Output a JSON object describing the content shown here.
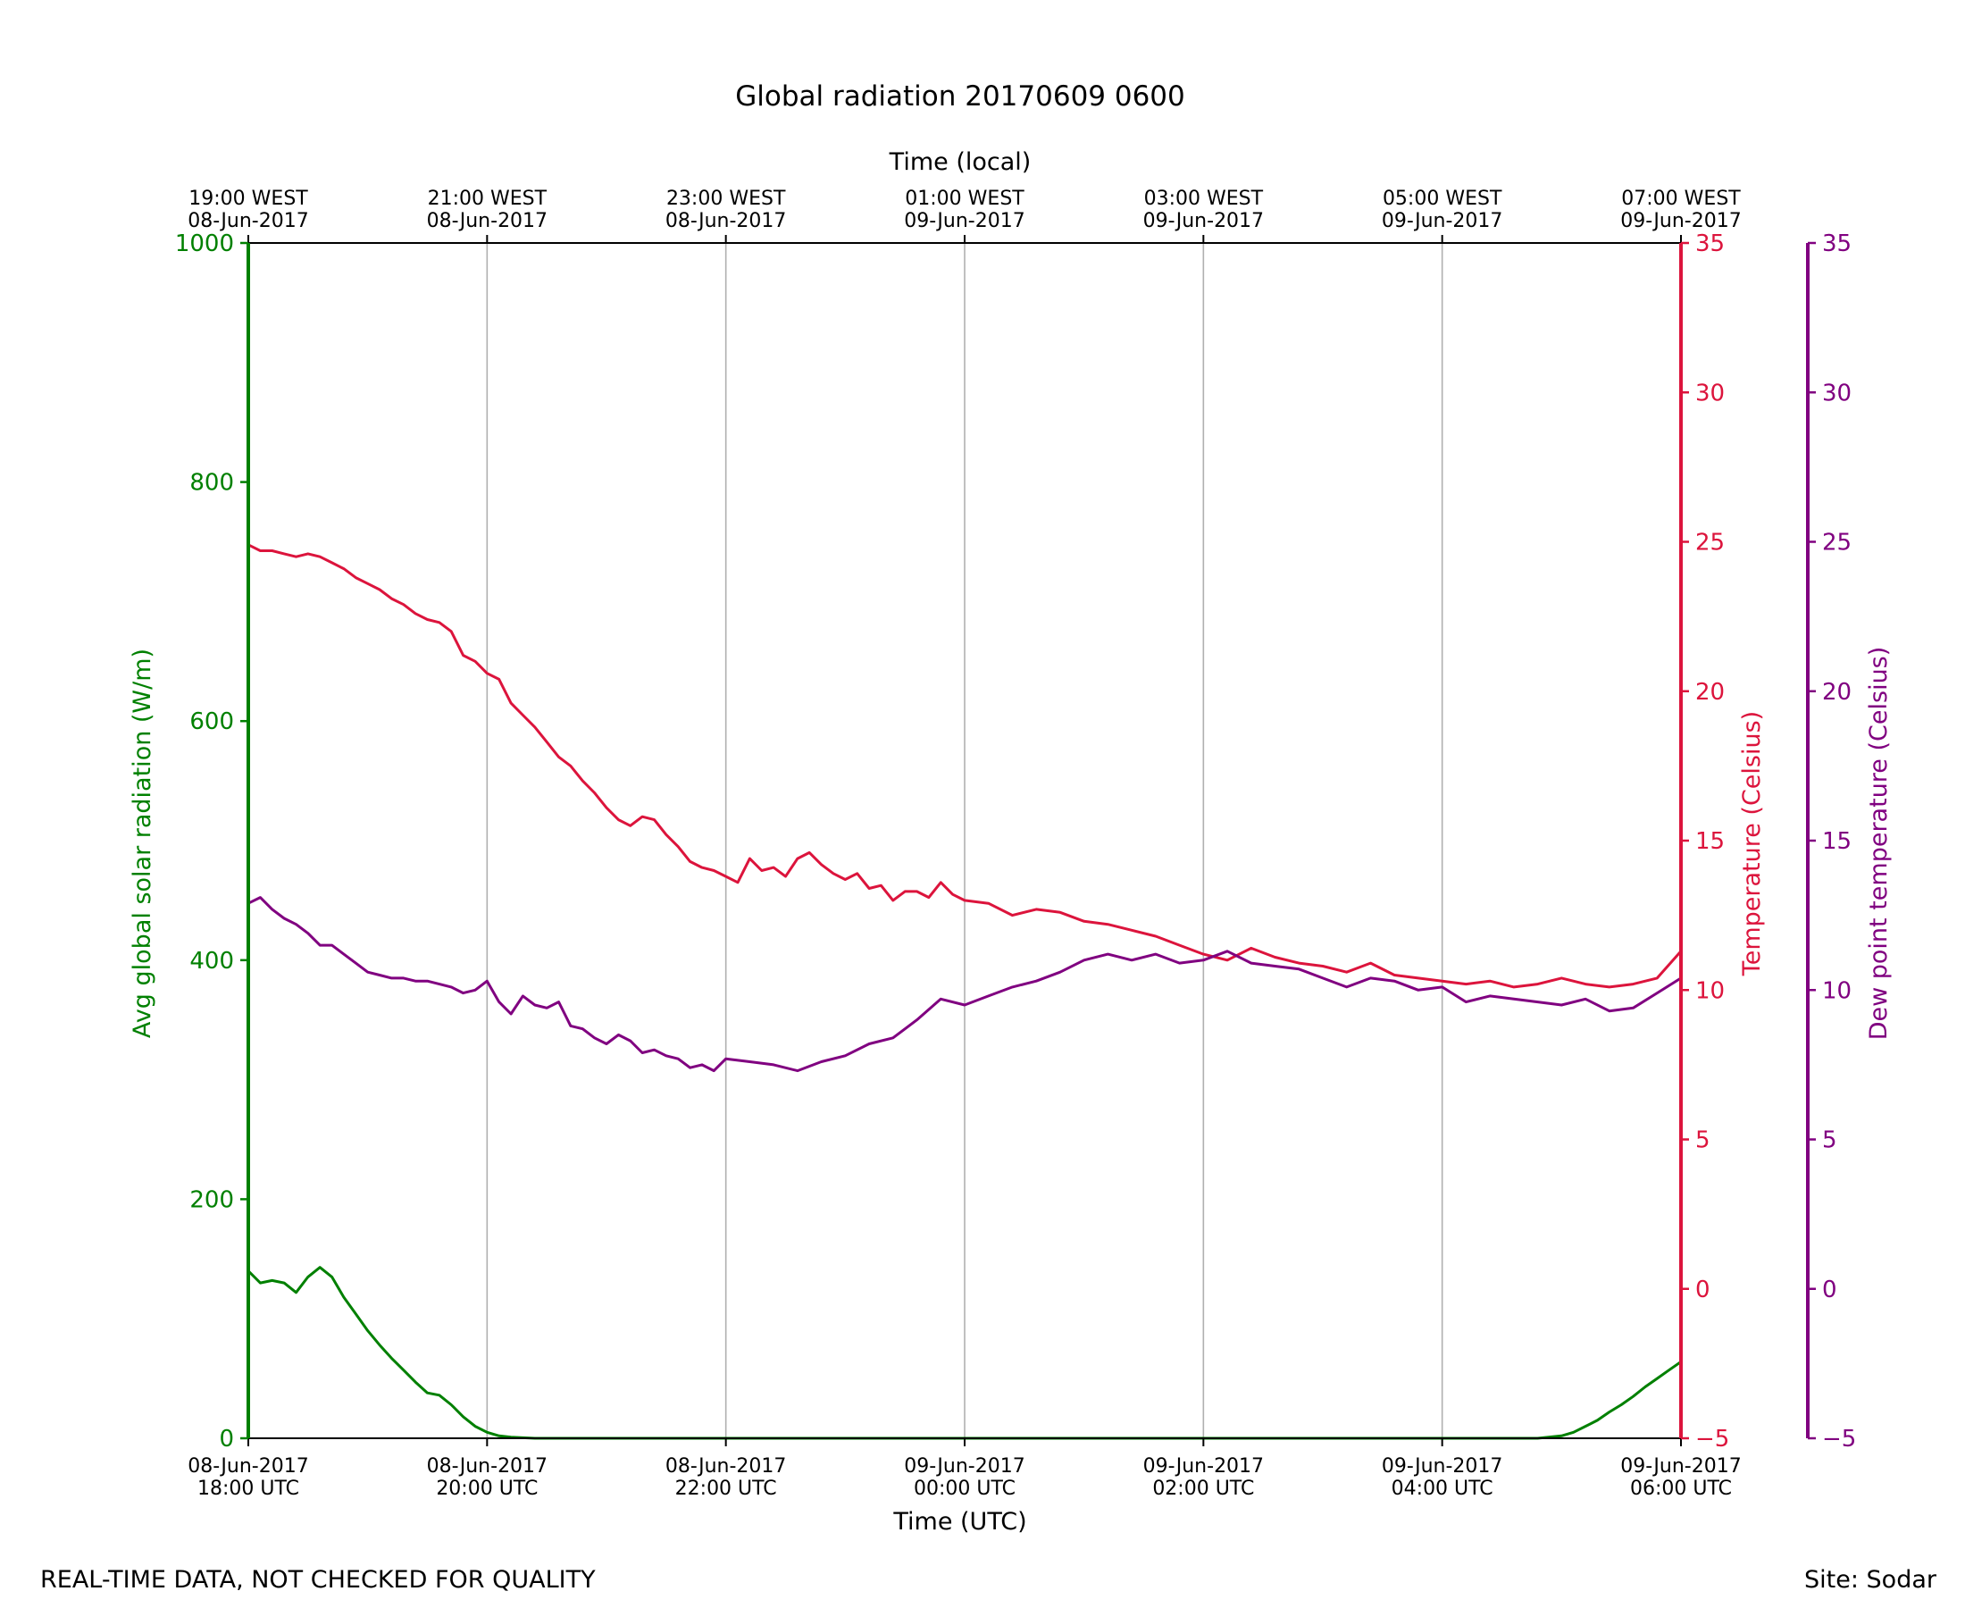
{
  "footer": {
    "left_note": "REAL-TIME DATA, NOT CHECKED FOR QUALITY",
    "site": "Site: Sodar"
  },
  "colors": {
    "radiation": "#008000",
    "temperature": "#dc143c",
    "dewpoint": "#800080",
    "grid": "#b0b0b0",
    "axis": "#000000"
  },
  "chart_data": {
    "type": "line",
    "title": "Global radiation 20170609 0600",
    "top_xlabel": "Time (local)",
    "xlabel": "Time (UTC)",
    "xlim_hours": [
      0,
      12
    ],
    "x_unit": "hours since 08-Jun-2017 18:00 UTC",
    "x_ticks": [
      {
        "hour": 0,
        "utc_date": "08-Jun-2017",
        "utc_time": "18:00 UTC",
        "local_time": "19:00 WEST",
        "local_date": "08-Jun-2017"
      },
      {
        "hour": 2,
        "utc_date": "08-Jun-2017",
        "utc_time": "20:00 UTC",
        "local_time": "21:00 WEST",
        "local_date": "08-Jun-2017"
      },
      {
        "hour": 4,
        "utc_date": "08-Jun-2017",
        "utc_time": "22:00 UTC",
        "local_time": "23:00 WEST",
        "local_date": "08-Jun-2017"
      },
      {
        "hour": 6,
        "utc_date": "09-Jun-2017",
        "utc_time": "00:00 UTC",
        "local_time": "01:00 WEST",
        "local_date": "09-Jun-2017"
      },
      {
        "hour": 8,
        "utc_date": "09-Jun-2017",
        "utc_time": "02:00 UTC",
        "local_time": "03:00 WEST",
        "local_date": "09-Jun-2017"
      },
      {
        "hour": 10,
        "utc_date": "09-Jun-2017",
        "utc_time": "04:00 UTC",
        "local_time": "05:00 WEST",
        "local_date": "09-Jun-2017"
      },
      {
        "hour": 12,
        "utc_date": "09-Jun-2017",
        "utc_time": "06:00 UTC",
        "local_time": "07:00 WEST",
        "local_date": "09-Jun-2017"
      }
    ],
    "y_axes": [
      {
        "key": "radiation",
        "label": "Avg global solar radiation (W/m)",
        "ylim": [
          0,
          1000
        ],
        "ticks": [
          0,
          200,
          400,
          600,
          800,
          1000
        ],
        "tick_labels": [
          "0",
          "200",
          "400",
          "600",
          "800",
          "1000"
        ],
        "side": "left"
      },
      {
        "key": "temperature",
        "label": "Temperature (Celsius)",
        "ylim": [
          -5,
          35
        ],
        "ticks": [
          -5,
          0,
          5,
          10,
          15,
          20,
          25,
          30,
          35
        ],
        "tick_labels": [
          "−5",
          "0",
          "5",
          "10",
          "15",
          "20",
          "25",
          "30",
          "35"
        ],
        "side": "right"
      },
      {
        "key": "dewpoint",
        "label": "Dew point temperature (Celsius)",
        "ylim": [
          -5,
          35
        ],
        "ticks": [
          -5,
          0,
          5,
          10,
          15,
          20,
          25,
          30,
          35
        ],
        "tick_labels": [
          "−5",
          "0",
          "5",
          "10",
          "15",
          "20",
          "25",
          "30",
          "35"
        ],
        "side": "right-outer"
      }
    ],
    "series": [
      {
        "name": "Avg global solar radiation",
        "axis": "radiation",
        "x": [
          0,
          0.1,
          0.2,
          0.3,
          0.4,
          0.5,
          0.6,
          0.7,
          0.8,
          0.9,
          1.0,
          1.1,
          1.2,
          1.3,
          1.4,
          1.5,
          1.6,
          1.7,
          1.8,
          1.9,
          2.0,
          2.1,
          2.2,
          2.4,
          2.6,
          3.0,
          4.0,
          6.0,
          8.0,
          10.0,
          10.6,
          10.8,
          11.0,
          11.1,
          11.2,
          11.3,
          11.4,
          11.5,
          11.6,
          11.7,
          11.8,
          11.9,
          12.0
        ],
        "y": [
          140,
          130,
          132,
          130,
          122,
          135,
          143,
          135,
          118,
          104,
          90,
          78,
          67,
          57,
          47,
          38,
          36,
          28,
          18,
          10,
          5,
          2,
          1,
          0,
          0,
          0,
          0,
          0,
          0,
          0,
          0,
          0,
          2,
          5,
          10,
          15,
          22,
          28,
          35,
          43,
          50,
          57,
          64
        ]
      },
      {
        "name": "Temperature",
        "axis": "temperature",
        "x": [
          0,
          0.1,
          0.2,
          0.3,
          0.4,
          0.5,
          0.6,
          0.7,
          0.8,
          0.9,
          1.0,
          1.1,
          1.2,
          1.3,
          1.4,
          1.5,
          1.6,
          1.7,
          1.8,
          1.9,
          2.0,
          2.1,
          2.2,
          2.3,
          2.4,
          2.5,
          2.6,
          2.7,
          2.8,
          2.9,
          3.0,
          3.1,
          3.2,
          3.3,
          3.4,
          3.5,
          3.6,
          3.7,
          3.8,
          3.9,
          4.0,
          4.1,
          4.2,
          4.3,
          4.4,
          4.5,
          4.6,
          4.7,
          4.8,
          4.9,
          5.0,
          5.1,
          5.2,
          5.3,
          5.4,
          5.5,
          5.6,
          5.7,
          5.8,
          5.9,
          6.0,
          6.2,
          6.4,
          6.6,
          6.8,
          7.0,
          7.2,
          7.4,
          7.6,
          7.8,
          8.0,
          8.2,
          8.4,
          8.6,
          8.8,
          9.0,
          9.2,
          9.4,
          9.6,
          9.8,
          10.0,
          10.2,
          10.4,
          10.6,
          10.8,
          11.0,
          11.2,
          11.4,
          11.6,
          11.8,
          12.0
        ],
        "y": [
          24.9,
          24.7,
          24.7,
          24.6,
          24.5,
          24.6,
          24.5,
          24.3,
          24.1,
          23.8,
          23.6,
          23.4,
          23.1,
          22.9,
          22.6,
          22.4,
          22.3,
          22.0,
          21.2,
          21.0,
          20.6,
          20.4,
          19.6,
          19.2,
          18.8,
          18.3,
          17.8,
          17.5,
          17.0,
          16.6,
          16.1,
          15.7,
          15.5,
          15.8,
          15.7,
          15.2,
          14.8,
          14.3,
          14.1,
          14.0,
          13.8,
          13.6,
          14.4,
          14.0,
          14.1,
          13.8,
          14.4,
          14.6,
          14.2,
          13.9,
          13.7,
          13.9,
          13.4,
          13.5,
          13.0,
          13.3,
          13.3,
          13.1,
          13.6,
          13.2,
          13.0,
          12.9,
          12.5,
          12.7,
          12.6,
          12.3,
          12.2,
          12.0,
          11.8,
          11.5,
          11.2,
          11.0,
          11.4,
          11.1,
          10.9,
          10.8,
          10.6,
          10.9,
          10.5,
          10.4,
          10.3,
          10.2,
          10.3,
          10.1,
          10.2,
          10.4,
          10.2,
          10.1,
          10.2,
          10.4,
          11.3
        ]
      },
      {
        "name": "Dew point temperature",
        "axis": "dewpoint",
        "x": [
          0,
          0.1,
          0.2,
          0.3,
          0.4,
          0.5,
          0.6,
          0.7,
          0.8,
          0.9,
          1.0,
          1.1,
          1.2,
          1.3,
          1.4,
          1.5,
          1.6,
          1.7,
          1.8,
          1.9,
          2.0,
          2.1,
          2.2,
          2.3,
          2.4,
          2.5,
          2.6,
          2.7,
          2.8,
          2.9,
          3.0,
          3.1,
          3.2,
          3.3,
          3.4,
          3.5,
          3.6,
          3.7,
          3.8,
          3.9,
          4.0,
          4.2,
          4.4,
          4.6,
          4.8,
          5.0,
          5.2,
          5.4,
          5.6,
          5.8,
          6.0,
          6.2,
          6.4,
          6.6,
          6.8,
          7.0,
          7.2,
          7.4,
          7.6,
          7.8,
          8.0,
          8.2,
          8.4,
          8.6,
          8.8,
          9.0,
          9.2,
          9.4,
          9.6,
          9.8,
          10.0,
          10.2,
          10.4,
          10.6,
          10.8,
          11.0,
          11.2,
          11.4,
          11.6,
          11.8,
          12.0
        ],
        "y": [
          12.9,
          13.1,
          12.7,
          12.4,
          12.2,
          11.9,
          11.5,
          11.5,
          11.2,
          10.9,
          10.6,
          10.5,
          10.4,
          10.4,
          10.3,
          10.3,
          10.2,
          10.1,
          9.9,
          10.0,
          10.3,
          9.6,
          9.2,
          9.8,
          9.5,
          9.4,
          9.6,
          8.8,
          8.7,
          8.4,
          8.2,
          8.5,
          8.3,
          7.9,
          8.0,
          7.8,
          7.7,
          7.4,
          7.5,
          7.3,
          7.7,
          7.6,
          7.5,
          7.3,
          7.6,
          7.8,
          8.2,
          8.4,
          9.0,
          9.7,
          9.5,
          9.8,
          10.1,
          10.3,
          10.6,
          11.0,
          11.2,
          11.0,
          11.2,
          10.9,
          11.0,
          11.3,
          10.9,
          10.8,
          10.7,
          10.4,
          10.1,
          10.4,
          10.3,
          10.0,
          10.1,
          9.6,
          9.8,
          9.7,
          9.6,
          9.5,
          9.7,
          9.3,
          9.4,
          9.9,
          10.4
        ]
      }
    ]
  }
}
